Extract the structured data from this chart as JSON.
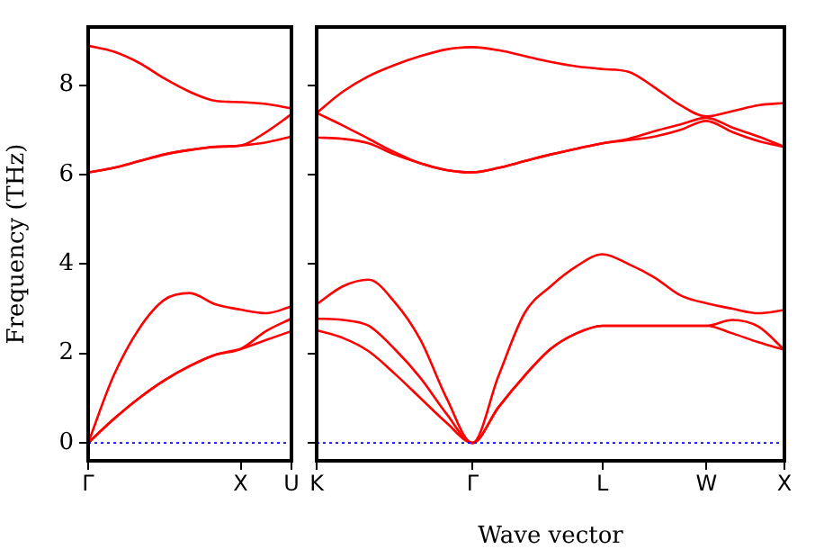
{
  "chart_data": [
    {
      "type": "line",
      "ylabel": "Frequency (THz)",
      "categories": [
        "Γ",
        null,
        null,
        null,
        null,
        null,
        "X",
        null,
        "U"
      ],
      "ylim": [
        -0.4,
        9.3
      ],
      "yticks": [
        0,
        2,
        4,
        6,
        8
      ],
      "grid": false,
      "legend": false,
      "marker": "none",
      "line_style": "solid",
      "series": [
        {
          "color": "#ff0000",
          "values": [
            0,
            0.53,
            1.0,
            1.4,
            1.72,
            1.97,
            2.1,
            2.3,
            2.5
          ]
        },
        {
          "color": "#ff0000",
          "values": [
            0,
            0.53,
            1.0,
            1.4,
            1.72,
            1.97,
            2.1,
            2.5,
            2.78
          ]
        },
        {
          "color": "#ff0000",
          "values": [
            0,
            1.5,
            2.55,
            3.2,
            3.35,
            3.1,
            2.98,
            2.9,
            3.05
          ]
        },
        {
          "color": "#ff0000",
          "values": [
            6.05,
            6.15,
            6.3,
            6.45,
            6.55,
            6.62,
            6.65,
            6.72,
            6.85
          ]
        },
        {
          "color": "#ff0000",
          "values": [
            6.05,
            6.15,
            6.3,
            6.45,
            6.55,
            6.62,
            6.65,
            6.95,
            7.35
          ]
        },
        {
          "color": "#ff0000",
          "values": [
            8.88,
            8.75,
            8.5,
            8.15,
            7.85,
            7.65,
            7.62,
            7.58,
            7.48
          ]
        }
      ],
      "ref_lines": [
        {
          "axis": "y",
          "value": 0,
          "color": "#0000ff",
          "line_style": "dotted"
        }
      ]
    },
    {
      "type": "line",
      "xlabel": "Wave vector",
      "categories": [
        "K",
        null,
        null,
        null,
        null,
        null,
        "Γ",
        null,
        null,
        null,
        null,
        "L",
        null,
        null,
        null,
        "W",
        null,
        null,
        "X"
      ],
      "ylim": [
        -0.4,
        9.3
      ],
      "yticks": [
        0,
        2,
        4,
        6,
        8
      ],
      "tick_labels": "x",
      "grid": false,
      "legend": false,
      "marker": "none",
      "line_style": "solid",
      "series": [
        {
          "color": "#ff0000",
          "values": [
            2.52,
            2.35,
            2.05,
            1.55,
            1.0,
            0.45,
            0,
            0.8,
            1.5,
            2.1,
            2.45,
            2.62,
            2.62,
            2.62,
            2.62,
            2.62,
            2.45,
            2.25,
            2.08
          ]
        },
        {
          "color": "#ff0000",
          "values": [
            2.78,
            2.75,
            2.62,
            2.1,
            1.45,
            0.65,
            0,
            0.8,
            1.5,
            2.1,
            2.45,
            2.62,
            2.62,
            2.62,
            2.62,
            2.62,
            2.75,
            2.6,
            2.08
          ]
        },
        {
          "color": "#ff0000",
          "values": [
            3.1,
            3.5,
            3.65,
            3.15,
            2.3,
            1.0,
            0,
            1.5,
            2.9,
            3.5,
            3.95,
            4.22,
            4.0,
            3.7,
            3.3,
            3.12,
            3.0,
            2.9,
            2.97
          ]
        },
        {
          "color": "#ff0000",
          "values": [
            6.83,
            6.8,
            6.7,
            6.45,
            6.25,
            6.1,
            6.05,
            6.15,
            6.3,
            6.45,
            6.58,
            6.7,
            6.77,
            6.85,
            7.0,
            7.2,
            6.95,
            6.75,
            6.62
          ]
        },
        {
          "color": "#ff0000",
          "values": [
            7.38,
            7.1,
            6.8,
            6.5,
            6.25,
            6.1,
            6.05,
            6.15,
            6.3,
            6.45,
            6.58,
            6.7,
            6.8,
            6.97,
            7.12,
            7.27,
            7.05,
            6.85,
            6.62
          ]
        },
        {
          "color": "#ff0000",
          "values": [
            7.38,
            7.85,
            8.2,
            8.45,
            8.65,
            8.8,
            8.85,
            8.78,
            8.65,
            8.52,
            8.42,
            8.36,
            8.3,
            7.95,
            7.55,
            7.3,
            7.42,
            7.55,
            7.6
          ]
        }
      ],
      "ref_lines": [
        {
          "axis": "y",
          "value": 0,
          "color": "#0000ff",
          "line_style": "dotted"
        }
      ]
    }
  ]
}
